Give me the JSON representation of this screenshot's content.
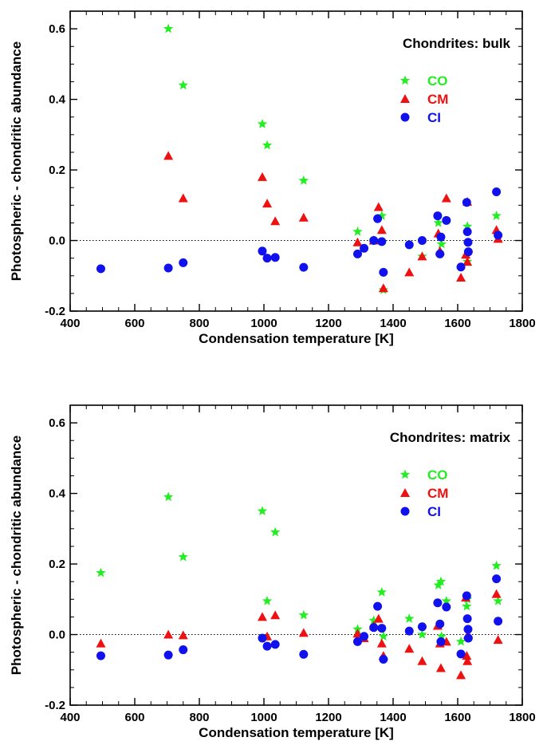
{
  "colors": {
    "CO": "#22ee22",
    "CM": "#ee1111",
    "CI": "#1111ee"
  },
  "chart_data": [
    {
      "type": "scatter",
      "title": "Chondrites: bulk",
      "xlabel": "Condensation temperature [K]",
      "ylabel": "Photospheric - chondritic abundance",
      "xlim": [
        400,
        1800
      ],
      "ylim": [
        -0.2,
        0.65
      ],
      "xticks": [
        "400",
        "600",
        "800",
        "1000",
        "1200",
        "1400",
        "1600",
        "1800"
      ],
      "yticks": [
        "-0.2",
        "0.0",
        "0.2",
        "0.4",
        "0.6"
      ],
      "reference_line_y": 0.0,
      "legend_placement": "top-right",
      "series": [
        {
          "name": "CO",
          "marker": "star",
          "color": "#22ee22",
          "points": [
            [
              704,
              0.6
            ],
            [
              750,
              0.44
            ],
            [
              995,
              0.33
            ],
            [
              1010,
              0.27
            ],
            [
              1123,
              0.17
            ],
            [
              1290,
              0.025
            ],
            [
              1340,
              0.0
            ],
            [
              1365,
              0.07
            ],
            [
              1370,
              -0.14
            ],
            [
              1490,
              -0.045
            ],
            [
              1540,
              0.05
            ],
            [
              1550,
              -0.01
            ],
            [
              1630,
              0.04
            ],
            [
              1630,
              -0.06
            ],
            [
              1720,
              0.07
            ]
          ]
        },
        {
          "name": "CM",
          "marker": "triangle",
          "color": "#ee1111",
          "points": [
            [
              704,
              0.24
            ],
            [
              750,
              0.12
            ],
            [
              995,
              0.18
            ],
            [
              1010,
              0.105
            ],
            [
              1035,
              0.055
            ],
            [
              1123,
              0.065
            ],
            [
              1290,
              -0.005
            ],
            [
              1340,
              0.0
            ],
            [
              1355,
              0.095
            ],
            [
              1365,
              0.03
            ],
            [
              1370,
              -0.135
            ],
            [
              1450,
              -0.09
            ],
            [
              1490,
              -0.045
            ],
            [
              1540,
              0.02
            ],
            [
              1545,
              -0.03
            ],
            [
              1565,
              0.12
            ],
            [
              1610,
              -0.105
            ],
            [
              1625,
              -0.04
            ],
            [
              1630,
              -0.06
            ],
            [
              1630,
              0.11
            ],
            [
              1720,
              0.03
            ],
            [
              1725,
              0.005
            ]
          ]
        },
        {
          "name": "CI",
          "marker": "circle",
          "color": "#1111ee",
          "points": [
            [
              495,
              -0.08
            ],
            [
              704,
              -0.078
            ],
            [
              750,
              -0.063
            ],
            [
              995,
              -0.03
            ],
            [
              1010,
              -0.05
            ],
            [
              1035,
              -0.048
            ],
            [
              1123,
              -0.076
            ],
            [
              1290,
              -0.038
            ],
            [
              1310,
              -0.022
            ],
            [
              1340,
              0.0
            ],
            [
              1352,
              0.062
            ],
            [
              1365,
              -0.003
            ],
            [
              1370,
              -0.09
            ],
            [
              1450,
              -0.012
            ],
            [
              1490,
              0.0
            ],
            [
              1538,
              0.07
            ],
            [
              1545,
              -0.038
            ],
            [
              1548,
              0.01
            ],
            [
              1565,
              0.057
            ],
            [
              1610,
              -0.075
            ],
            [
              1628,
              0.108
            ],
            [
              1630,
              0.025
            ],
            [
              1632,
              -0.005
            ],
            [
              1633,
              -0.032
            ],
            [
              1720,
              0.138
            ],
            [
              1725,
              0.015
            ]
          ]
        }
      ]
    },
    {
      "type": "scatter",
      "title": "Chondrites: matrix",
      "xlabel": "Condensation temperature [K]",
      "ylabel": "Photospheric - chondritic abundance",
      "xlim": [
        400,
        1800
      ],
      "ylim": [
        -0.2,
        0.65
      ],
      "xticks": [
        "400",
        "600",
        "800",
        "1000",
        "1200",
        "1400",
        "1600",
        "1800"
      ],
      "yticks": [
        "-0.2",
        "0.0",
        "0.2",
        "0.4",
        "0.6"
      ],
      "reference_line_y": 0.0,
      "legend_placement": "top-right",
      "series": [
        {
          "name": "CO",
          "marker": "star",
          "color": "#22ee22",
          "points": [
            [
              495,
              0.175
            ],
            [
              704,
              0.39
            ],
            [
              750,
              0.22
            ],
            [
              995,
              0.35
            ],
            [
              1010,
              0.095
            ],
            [
              1035,
              0.29
            ],
            [
              1123,
              0.055
            ],
            [
              1290,
              0.015
            ],
            [
              1340,
              0.04
            ],
            [
              1365,
              0.12
            ],
            [
              1370,
              -0.005
            ],
            [
              1450,
              0.045
            ],
            [
              1490,
              0.0
            ],
            [
              1540,
              0.14
            ],
            [
              1548,
              0.15
            ],
            [
              1550,
              -0.005
            ],
            [
              1565,
              0.095
            ],
            [
              1610,
              -0.02
            ],
            [
              1628,
              0.08
            ],
            [
              1630,
              0.1
            ],
            [
              1720,
              0.195
            ],
            [
              1725,
              0.095
            ]
          ]
        },
        {
          "name": "CM",
          "marker": "triangle",
          "color": "#ee1111",
          "points": [
            [
              495,
              -0.025
            ],
            [
              704,
              0.0
            ],
            [
              750,
              -0.002
            ],
            [
              995,
              0.05
            ],
            [
              1010,
              -0.005
            ],
            [
              1035,
              0.055
            ],
            [
              1123,
              0.005
            ],
            [
              1290,
              0.003
            ],
            [
              1310,
              -0.01
            ],
            [
              1340,
              0.025
            ],
            [
              1355,
              0.045
            ],
            [
              1365,
              -0.025
            ],
            [
              1370,
              -0.06
            ],
            [
              1450,
              -0.04
            ],
            [
              1490,
              -0.075
            ],
            [
              1538,
              0.025
            ],
            [
              1545,
              -0.025
            ],
            [
              1548,
              -0.095
            ],
            [
              1565,
              -0.02
            ],
            [
              1610,
              -0.115
            ],
            [
              1625,
              0.105
            ],
            [
              1628,
              -0.06
            ],
            [
              1630,
              -0.075
            ],
            [
              1632,
              0.0
            ],
            [
              1720,
              0.115
            ],
            [
              1725,
              -0.015
            ]
          ]
        },
        {
          "name": "CI",
          "marker": "circle",
          "color": "#1111ee",
          "points": [
            [
              495,
              -0.06
            ],
            [
              704,
              -0.058
            ],
            [
              750,
              -0.043
            ],
            [
              995,
              -0.01
            ],
            [
              1010,
              -0.033
            ],
            [
              1035,
              -0.028
            ],
            [
              1123,
              -0.056
            ],
            [
              1290,
              -0.02
            ],
            [
              1310,
              -0.005
            ],
            [
              1340,
              0.02
            ],
            [
              1352,
              0.08
            ],
            [
              1365,
              0.018
            ],
            [
              1370,
              -0.07
            ],
            [
              1450,
              0.01
            ],
            [
              1490,
              0.022
            ],
            [
              1538,
              0.09
            ],
            [
              1545,
              0.03
            ],
            [
              1548,
              -0.02
            ],
            [
              1565,
              0.078
            ],
            [
              1610,
              -0.055
            ],
            [
              1628,
              0.11
            ],
            [
              1630,
              0.045
            ],
            [
              1632,
              0.015
            ],
            [
              1633,
              -0.01
            ],
            [
              1720,
              0.158
            ],
            [
              1725,
              0.038
            ]
          ]
        }
      ]
    }
  ]
}
